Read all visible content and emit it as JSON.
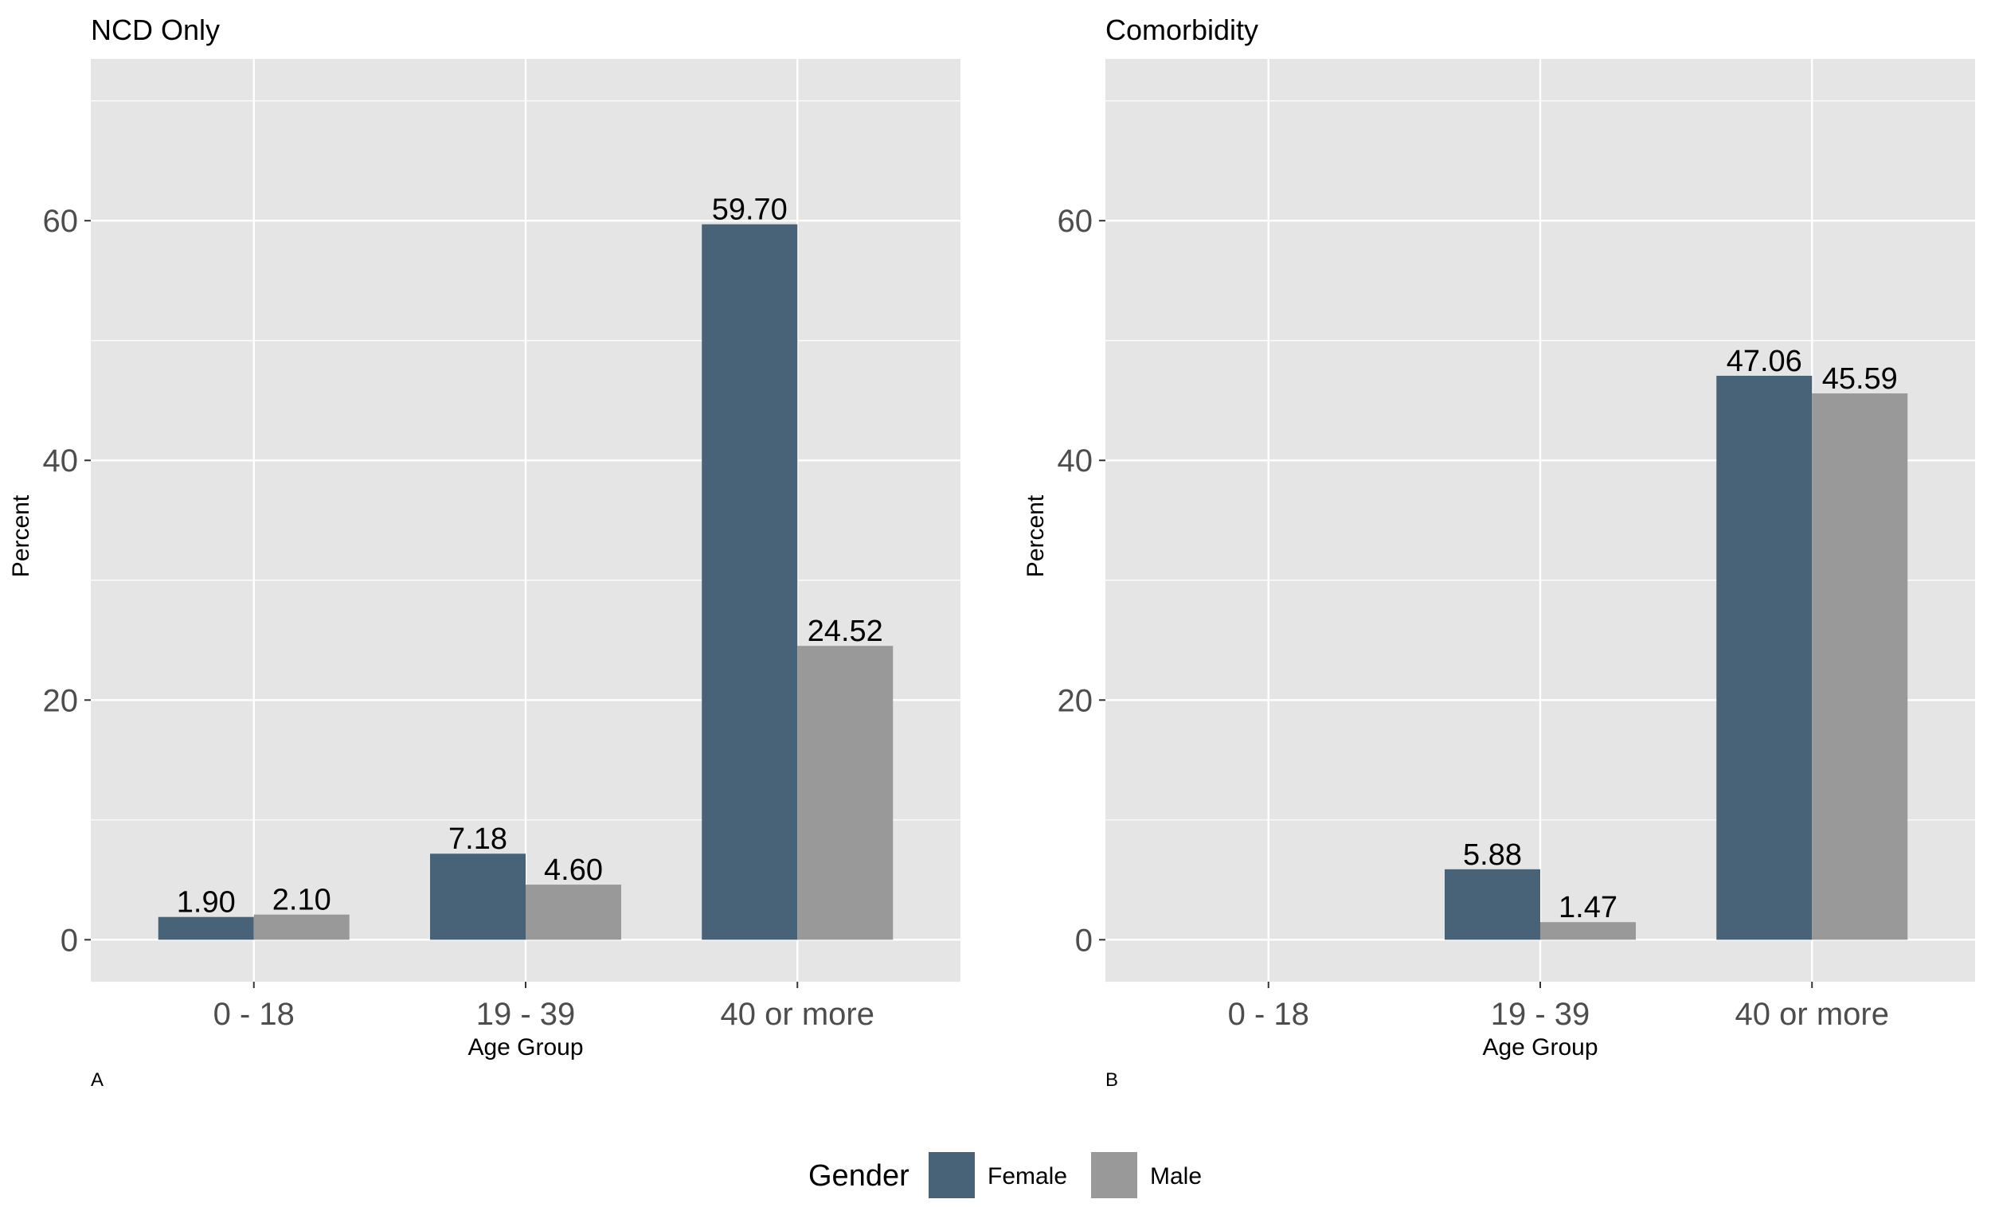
{
  "colors": {
    "female": "#486378",
    "male": "#999999",
    "panel_bg": "#e5e5e5",
    "grid": "#ffffff"
  },
  "legend": {
    "title": "Gender",
    "items": [
      {
        "label": "Female",
        "color": "#486378"
      },
      {
        "label": "Male",
        "color": "#999999"
      }
    ],
    "position": "bottom"
  },
  "chart_data": [
    {
      "type": "bar",
      "title": "NCD Only",
      "caption": "A",
      "xlabel": "Age Group",
      "ylabel": "Percent",
      "categories": [
        "0 - 18",
        "19 - 39",
        "40 or more"
      ],
      "ylim": [
        -3.5,
        73.5
      ],
      "yticks": [
        0,
        20,
        40,
        60
      ],
      "grid": true,
      "series": [
        {
          "name": "Female",
          "values": [
            1.9,
            7.18,
            59.7
          ],
          "labels": [
            "1.90",
            "7.18",
            "59.70"
          ]
        },
        {
          "name": "Male",
          "values": [
            2.1,
            4.6,
            24.52
          ],
          "labels": [
            "2.10",
            "4.60",
            "24.52"
          ]
        }
      ]
    },
    {
      "type": "bar",
      "title": "Comorbidity",
      "caption": "B",
      "xlabel": "Age Group",
      "ylabel": "Percent",
      "categories": [
        "0 - 18",
        "19 - 39",
        "40 or more"
      ],
      "ylim": [
        -3.5,
        73.5
      ],
      "yticks": [
        0,
        20,
        40,
        60
      ],
      "grid": true,
      "series": [
        {
          "name": "Female",
          "values": [
            null,
            5.88,
            47.06
          ],
          "labels": [
            null,
            "5.88",
            "47.06"
          ]
        },
        {
          "name": "Male",
          "values": [
            null,
            1.47,
            45.59
          ],
          "labels": [
            null,
            "1.47",
            "45.59"
          ]
        }
      ]
    }
  ]
}
